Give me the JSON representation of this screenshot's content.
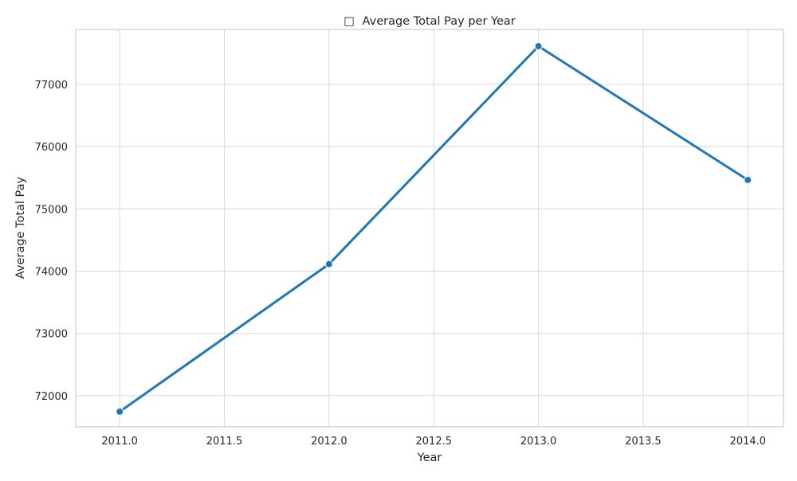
{
  "chart_data": {
    "type": "line",
    "title_icon": "□",
    "title": "Average Total Pay per Year",
    "xlabel": "Year",
    "ylabel": "Average Total Pay",
    "x": [
      2011,
      2012,
      2013,
      2014
    ],
    "series": [
      {
        "values": [
          71744,
          74113,
          77611,
          75464
        ],
        "color": "#1f77b4"
      }
    ],
    "xlim": [
      2010.79,
      2014.17
    ],
    "ylim": [
      71500,
      77880
    ],
    "xticks": [
      2011.0,
      2011.5,
      2012.0,
      2012.5,
      2013.0,
      2013.5,
      2014.0
    ],
    "xtick_labels": [
      "2011.0",
      "2011.5",
      "2012.0",
      "2012.5",
      "2013.0",
      "2013.5",
      "2014.0"
    ],
    "yticks": [
      72000,
      73000,
      74000,
      75000,
      76000,
      77000
    ],
    "ytick_labels": [
      "72000",
      "73000",
      "74000",
      "75000",
      "76000",
      "77000"
    ],
    "grid": true,
    "legend": "none",
    "colors": {
      "grid": "#d9d9d9",
      "frame": "#cccccc",
      "text": "#262626"
    }
  }
}
